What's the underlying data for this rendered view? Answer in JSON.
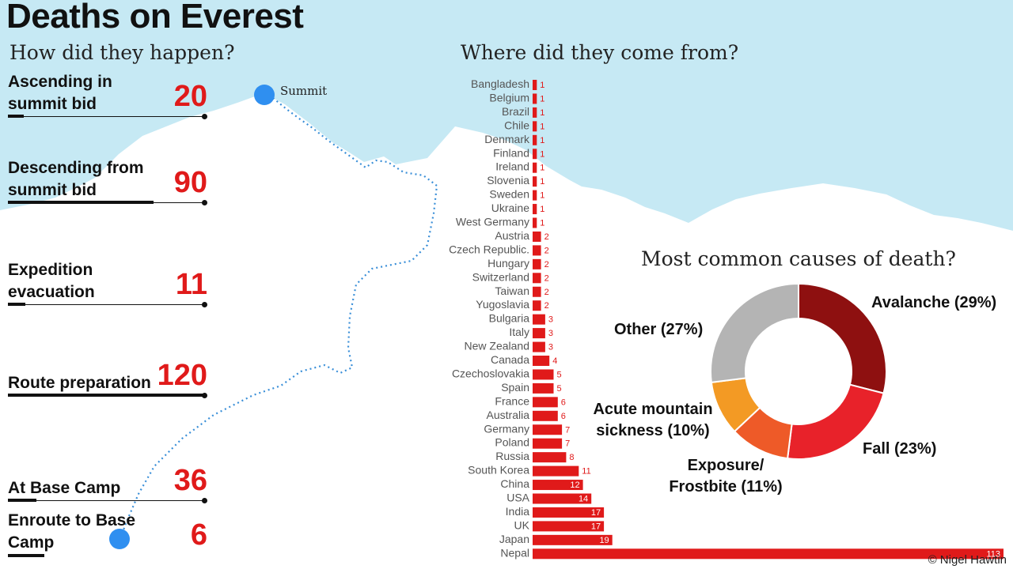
{
  "title": "Deaths on Everest",
  "credit": "© Nigel Hawtin",
  "colors": {
    "sky": "#c6e9f4",
    "accent": "#e01a1a",
    "route": "#3a8fd8"
  },
  "stages": {
    "heading": "How did they happen?",
    "summit_label": "Summit",
    "items": [
      {
        "label": "Ascending in summit bid",
        "value": 20
      },
      {
        "label": "Descending from summit bid",
        "value": 90
      },
      {
        "label": "Expedition evacuation",
        "value": 11
      },
      {
        "label": "Route preparation",
        "value": 120
      },
      {
        "label": "At Base Camp",
        "value": 36
      },
      {
        "label": "Enroute to Base Camp",
        "value": 6
      }
    ]
  },
  "chart_data": [
    {
      "type": "bar",
      "title": "Where did they come from?",
      "orientation": "horizontal",
      "categories": [
        "Bangladesh",
        "Belgium",
        "Brazil",
        "Chile",
        "Denmark",
        "Finland",
        "Ireland",
        "Slovenia",
        "Sweden",
        "Ukraine",
        "West Germany",
        "Austria",
        "Czech Republic.",
        "Hungary",
        "Switzerland",
        "Taiwan",
        "Yugoslavia",
        "Bulgaria",
        "Italy",
        "New Zealand",
        "Canada",
        "Czechoslovakia",
        "Spain",
        "France",
        "Australia",
        "Germany",
        "Poland",
        "Russia",
        "South Korea",
        "China",
        "USA",
        "India",
        "UK",
        "Japan",
        "Nepal"
      ],
      "values": [
        1,
        1,
        1,
        1,
        1,
        1,
        1,
        1,
        1,
        1,
        1,
        2,
        2,
        2,
        2,
        2,
        2,
        3,
        3,
        3,
        4,
        5,
        5,
        6,
        6,
        7,
        7,
        8,
        11,
        12,
        14,
        17,
        17,
        19,
        113
      ],
      "color": "#e01a1a"
    },
    {
      "type": "pie",
      "title": "Most common causes of death?",
      "labels": [
        "Avalanche (29%)",
        "Fall (23%)",
        "Exposure/ Frostbite (11%)",
        "Acute mountain sickness (10%)",
        "Other (27%)"
      ],
      "values": [
        29,
        23,
        11,
        10,
        27
      ],
      "colors": [
        "#8e1010",
        "#e8222a",
        "#ee5a28",
        "#f39a24",
        "#b4b4b4"
      ]
    }
  ]
}
